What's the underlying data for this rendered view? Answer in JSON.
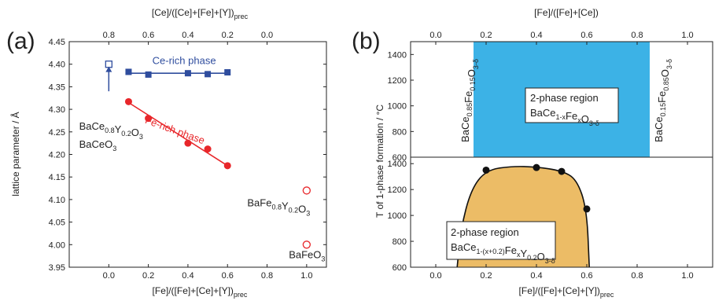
{
  "colors": {
    "red": "#e8262a",
    "blue": "#2f4d9e",
    "cyan": "#3cb2e6",
    "orange": "#ecbc66",
    "black": "#111111"
  },
  "chart_data": [
    {
      "panel_label": "(a)",
      "type": "scatter",
      "xlabel_main": "[Fe]/([Fe]+[Ce]+[Y])",
      "xlabel_sub": "prec",
      "x2label_main": "[Ce]/([Ce]+[Fe]+[Y])",
      "x2label_sub": "prec",
      "ylabel": "lattice parameter / Å",
      "xlim": [
        -0.2,
        1.1
      ],
      "ylim": [
        3.95,
        4.45
      ],
      "xticks": [
        0.0,
        0.2,
        0.4,
        0.6,
        0.8,
        1.0
      ],
      "xtick_labels": [
        "0.0",
        "0.2",
        "0.4",
        "0.6",
        "0.8",
        "1.0"
      ],
      "x2ticks": [
        0.0,
        0.2,
        0.4,
        0.6,
        0.8
      ],
      "x2tick_labels": [
        "0.8",
        "0.6",
        "0.4",
        "0.2",
        "0.0"
      ],
      "yticks": [
        3.95,
        4.0,
        4.05,
        4.1,
        4.15,
        4.2,
        4.25,
        4.3,
        4.35,
        4.4,
        4.45
      ],
      "ytick_labels": [
        "3.95",
        "4.00",
        "4.05",
        "4.10",
        "4.15",
        "4.20",
        "4.25",
        "4.30",
        "4.35",
        "4.40",
        "4.45"
      ],
      "series": [
        {
          "name": "Ce-rich phase",
          "color": "#2f4d9e",
          "marker": "square",
          "x": [
            0.1,
            0.2,
            0.4,
            0.5,
            0.6
          ],
          "y": [
            4.383,
            4.377,
            4.38,
            4.378,
            4.382
          ],
          "fit": [
            [
              0.1,
              4.38
            ],
            [
              0.6,
              4.38
            ]
          ]
        },
        {
          "name": "Fe-rich phase",
          "color": "#e8262a",
          "marker": "circle",
          "x": [
            0.1,
            0.2,
            0.4,
            0.5,
            0.6
          ],
          "y": [
            4.317,
            4.28,
            4.225,
            4.212,
            4.175
          ],
          "fit": [
            [
              0.1,
              4.315
            ],
            [
              0.6,
              4.175
            ]
          ]
        }
      ],
      "open_points": [
        {
          "marker": "square",
          "color": "#2f4d9e",
          "x": 0.0,
          "y": 4.4
        },
        {
          "marker": "circle",
          "color": "#e8262a",
          "x": 1.0,
          "y": 4.12
        },
        {
          "marker": "circle",
          "color": "#e8262a",
          "x": 1.0,
          "y": 4.0
        }
      ],
      "arrow": {
        "x": 0.0,
        "y_from": 4.34,
        "y_to": 4.395
      },
      "annotations": [
        {
          "text": "BaCe",
          "sub": [
            "0.8",
            "0.2",
            "3"
          ],
          "parts": [
            "BaCe",
            "Y",
            "O"
          ],
          "x": -0.15,
          "y": 4.255
        },
        {
          "text": "BaCeO",
          "parts": [
            "BaCeO"
          ],
          "sub": [
            "3"
          ],
          "x": -0.15,
          "y": 4.215
        },
        {
          "parts": [
            "BaFe",
            "Y",
            "O"
          ],
          "sub": [
            "0.8",
            "0.2",
            "3"
          ],
          "x": 0.7,
          "y": 4.085
        },
        {
          "parts": [
            "BaFeO"
          ],
          "sub": [
            "3"
          ],
          "x": 0.91,
          "y": 3.97
        }
      ],
      "phase_labels": [
        {
          "text": "Ce-rich phase",
          "color": "#2f4d9e",
          "x": 0.22,
          "y": 4.4
        },
        {
          "text": "Fe-rich phase",
          "color": "#e8262a",
          "x": 0.18,
          "y": 4.27,
          "rotate": 20
        }
      ]
    },
    {
      "panel_label": "(b)",
      "type": "area",
      "top": {
        "x2label_main": "[Fe]/([Fe]+[Ce])",
        "xlim": [
          -0.1,
          1.1
        ],
        "ylim": [
          600,
          1500
        ],
        "yticks": [
          600,
          800,
          1000,
          1200,
          1400
        ],
        "ytick_labels": [
          "600",
          "800",
          "1000",
          "1200",
          "1400"
        ],
        "xticks": [
          0.0,
          0.2,
          0.4,
          0.6,
          0.8,
          1.0
        ],
        "xtick_labels": [
          "0.0",
          "0.2",
          "0.4",
          "0.6",
          "0.8",
          "1.0"
        ],
        "region": {
          "x_from": 0.15,
          "x_to": 0.85,
          "color": "#3cb2e6"
        },
        "region_label_line1": "2-phase region",
        "region_label_parts": [
          "BaCe",
          "Fe",
          "O"
        ],
        "region_label_sub": [
          "1-x",
          "x",
          "3-δ"
        ],
        "left_compound": {
          "parts": [
            "BaCe",
            "Fe",
            "O"
          ],
          "sub": [
            "0.85",
            "0.15",
            "3-δ"
          ]
        },
        "right_compound": {
          "parts": [
            "BaCe",
            "Fe",
            "O"
          ],
          "sub": [
            "0.15",
            "0.85",
            "3-δ"
          ]
        }
      },
      "bottom": {
        "xlabel_main": "[Fe]/([Fe]+[Ce]+[Y])",
        "xlabel_sub": "prec",
        "ylabel": "T of 1-phase formation / °C",
        "xlim": [
          -0.1,
          1.1
        ],
        "ylim": [
          600,
          1450
        ],
        "yticks": [
          600,
          800,
          1000,
          1200,
          1400
        ],
        "ytick_labels": [
          "600",
          "800",
          "1000",
          "1200",
          "1400"
        ],
        "xticks": [
          0.0,
          0.2,
          0.4,
          0.6,
          0.8,
          1.0
        ],
        "xtick_labels": [
          "0.0",
          "0.2",
          "0.4",
          "0.6",
          "0.8",
          "1.0"
        ],
        "points_x": [
          0.1,
          0.2,
          0.4,
          0.5,
          0.6
        ],
        "points_y": [
          900,
          1350,
          1370,
          1340,
          1050
        ],
        "boundary": [
          [
            0.085,
            600
          ],
          [
            0.1,
            900
          ],
          [
            0.14,
            1200
          ],
          [
            0.2,
            1350
          ],
          [
            0.3,
            1380
          ],
          [
            0.4,
            1375
          ],
          [
            0.5,
            1345
          ],
          [
            0.56,
            1280
          ],
          [
            0.6,
            1050
          ],
          [
            0.61,
            600
          ]
        ],
        "region_color": "#ecbc66",
        "region_label_line1": "2-phase region",
        "region_label_parts": [
          "BaCe",
          "Fe",
          "Y",
          "O"
        ],
        "region_label_sub": [
          "1-(x+0.2)",
          "x",
          "0.2",
          "3-δ"
        ]
      }
    }
  ]
}
